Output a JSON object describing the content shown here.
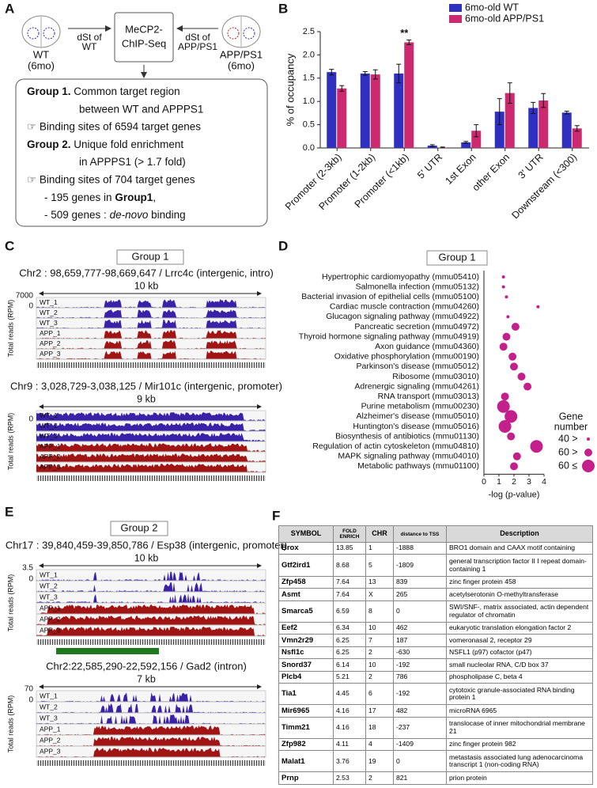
{
  "panel_a": {
    "letter": "A",
    "wt": "WT",
    "wt_age": "(6mo)",
    "left_arrow": [
      "dSt of",
      "WT"
    ],
    "center": [
      "MeCP2-",
      "ChIP-Seq"
    ],
    "right_arrow": [
      "dSt of",
      "APP/PS1"
    ],
    "app": "APP/PS1",
    "app_age": "(6mo)",
    "box_lines": [
      [
        {
          "text": "Group 1.",
          "style": "bold"
        },
        {
          "text": "  Common target region"
        }
      ],
      [
        {
          "text": "between WT and APPPS1"
        }
      ],
      [
        {
          "text": "☞ Binding sites of 6594 target genes"
        }
      ],
      [
        {
          "text": "Group 2.",
          "style": "bold"
        },
        {
          "text": "  Unique fold enrichment"
        }
      ],
      [
        {
          "text": "in APPPS1 (> 1.7 fold)"
        }
      ],
      [
        {
          "text": "☞ Binding sites of 704 target genes"
        }
      ],
      [
        {
          "text": "- 195 genes in "
        },
        {
          "text": "Group1",
          "style": "bold"
        },
        {
          "text": ","
        }
      ],
      [
        {
          "text": "- 509 genes : "
        },
        {
          "text": "de-novo",
          "style": "italic"
        },
        {
          "text": " binding"
        }
      ]
    ]
  },
  "panel_b": {
    "letter": "B",
    "chart_data": {
      "type": "bar",
      "y_label": "% of occupancy",
      "categories": [
        "Promoter (2-3kb)",
        "Promoter (1-2kb)",
        "Promoter (<1kb)",
        "5' UTR",
        "1st Exon",
        "other Exon",
        "3' UTR",
        "Downstream (<300)"
      ],
      "series": [
        {
          "name": "6mo-old WT",
          "color": "#2f2fc0",
          "values": [
            1.63,
            1.6,
            1.6,
            0.05,
            0.12,
            0.78,
            0.86,
            0.76
          ],
          "errors": [
            0.06,
            0.04,
            0.2,
            0.02,
            0.02,
            0.28,
            0.12,
            0.03
          ]
        },
        {
          "name": "6mo-old APP/PS1",
          "color": "#cc2a6e",
          "values": [
            1.28,
            1.58,
            2.27,
            0.01,
            0.37,
            1.18,
            1.02,
            0.42
          ],
          "errors": [
            0.06,
            0.1,
            0.05,
            0.01,
            0.13,
            0.22,
            0.15,
            0.06
          ]
        }
      ],
      "annotations": [
        {
          "category": 2,
          "text": "**"
        }
      ],
      "ylim": [
        0,
        2.5
      ],
      "yticks": [
        {
          "value": 0,
          "label": "0.0"
        },
        0.5,
        {
          "value": 1,
          "label": "1.0"
        },
        1.5,
        {
          "value": 2,
          "label": "2.0"
        },
        2.5
      ],
      "legend": "upper right"
    }
  },
  "panel_c": {
    "letter": "C",
    "group": "Group 1",
    "y_label": "Total reads (RPM)",
    "blocks": [
      {
        "title": "Chr2 : 98,659,777-98,669,647 / Lrrc4c (intergenic, intro)",
        "scale": "10 kb",
        "ymax": 7000,
        "ymin": 0,
        "tracks": [
          "WT_1",
          "WT_2",
          "WT_3",
          "APP_1",
          "APP_2",
          "APP_3"
        ]
      },
      {
        "title": "Chr9 : 3,028,729-3,038,125 / Mir101c (intergenic, promoter)",
        "scale": "9 kb",
        "ymin": 0,
        "tracks": [
          "WT_1",
          "WT_2",
          "WT_3",
          "APP_1",
          "APP_2",
          "APP_3"
        ]
      }
    ]
  },
  "panel_d": {
    "letter": "D",
    "chart_data": {
      "type": "dot",
      "title": "Group 1",
      "x_label": "-log (p-value)",
      "color": "#c4208c",
      "categories": [
        "Hypertrophic cardiomyopathy (mmu05410)",
        "Salmonella infection (mmu05132)",
        "Bacterial invasion of epithelial cells (mmu05100)",
        "Cardiac muscle contraction (mmu04260)",
        "Glucagon signaling pathway (mmu04922)",
        "Pancreatic secretion (mmu04972)",
        "Thyroid hormone signaling pathway (mmu04919)",
        "Axon guidance (mmu04360)",
        "Oxidative phosphorylation (mmu00190)",
        "Parkinson's disease (mmu05012)",
        "Ribosome (mmu03010)",
        "Adrenergic signaling (mmu04261)",
        "RNA transport (mmu03013)",
        "Purine metabolism (mmu00230)",
        "Alzheimer's disease (mmu05010)",
        "Huntington's disease (mmu05016)",
        "Biosynthesis of antibiotics (mmu01130)",
        "Regulation of actin cytoskeleton (mmu04810)",
        "MAPK signaling pathway (mmu04010)",
        "Metabolic pathways (mmu01100)"
      ],
      "values": [
        1.3,
        1.3,
        1.5,
        3.6,
        1.6,
        2.1,
        1.5,
        1.3,
        1.9,
        2.0,
        2.5,
        2.9,
        1.4,
        1.3,
        1.8,
        1.4,
        1.8,
        3.5,
        2.2,
        2.0
      ],
      "size_class": [
        0,
        0,
        0,
        0,
        0,
        1,
        1,
        1,
        1,
        1,
        1,
        1,
        1,
        2,
        2,
        2,
        1,
        2,
        1,
        1
      ],
      "size_legend_title": [
        "Gene",
        "number"
      ],
      "size_legend": [
        "40 >",
        "60 >",
        "60 ≤"
      ],
      "xlim": [
        0,
        4
      ],
      "xticks": [
        0,
        1,
        2,
        3,
        4
      ]
    }
  },
  "panel_e": {
    "letter": "E",
    "group": "Group 2",
    "y_label": "Total reads (RPM)",
    "blocks": [
      {
        "title": "Chr17 : 39,840,459-39,850,786 / Esp38 (intergenic, promoter)",
        "scale": "10 kb",
        "ymax": 3.5,
        "ymin": 0,
        "tracks": [
          "WT_1",
          "WT_2",
          "WT_3",
          "APP_1",
          "APP_2",
          "APP_3"
        ]
      },
      {
        "title": "Chr2:22,585,290-22,592,156 / Gad2 (intron)",
        "scale": "7 kb",
        "ymax": 70,
        "ymin": 0,
        "tracks": [
          "WT_1",
          "WT_2",
          "WT_3",
          "APP_1",
          "APP_2",
          "APP_3"
        ]
      }
    ]
  },
  "panel_f": {
    "letter": "F",
    "table": {
      "header": [
        "SYMBOL",
        "FOLD ENRICH",
        "CHR",
        "distance to TSS",
        "Description"
      ],
      "rows": [
        [
          "Brox",
          "13.85",
          "1",
          "-1888",
          "BRO1 domain and CAAX motif containing"
        ],
        [
          "Gtf2ird1",
          "8.68",
          "5",
          "-1809",
          "general transcription factor II I repeat domain-containing 1"
        ],
        [
          "Zfp458",
          "7.64",
          "13",
          "839",
          "zinc finger protein 458"
        ],
        [
          "Asmt",
          "7.64",
          "X",
          "265",
          "acetylserotonin O-methyltransferase"
        ],
        [
          "Smarca5",
          "6.59",
          "8",
          "0",
          "SWI/SNF-, matrix associated, actin dependent regulator of chromatin"
        ],
        [
          "Eef2",
          "6.34",
          "10",
          "462",
          "eukaryotic translation elongation factor 2"
        ],
        [
          "Vmn2r29",
          "6.25",
          "7",
          "187",
          "vomeronasal 2, receptor 29"
        ],
        [
          "Nsfl1c",
          "6.25",
          "2",
          "-630",
          "NSFL1 (p97) cofactor (p47)"
        ],
        [
          "Snord37",
          "6.14",
          "10",
          "-192",
          "small nucleolar RNA, C/D box 37"
        ],
        [
          "Plcb4",
          "5.21",
          "2",
          "786",
          "phospholipase C, beta 4"
        ],
        [
          "Tia1",
          "4.45",
          "6",
          "-192",
          "cytotoxic granule-associated RNA binding protein 1"
        ],
        [
          "Mir6965",
          "4.16",
          "17",
          "482",
          "microRNA 6965"
        ],
        [
          "Timm21",
          "4.16",
          "18",
          "-237",
          "translocase of inner mitochondrial membrane 21"
        ],
        [
          "Zfp982",
          "4.11",
          "4",
          "-1409",
          "zinc finger protein 982"
        ],
        [
          "Malat1",
          "3.76",
          "19",
          "0",
          "metastasis associated lung adenocarcinoma transcript 1 (non-coding RNA)"
        ],
        [
          "Prnp",
          "2.53",
          "2",
          "821",
          "prion protein"
        ]
      ]
    }
  }
}
